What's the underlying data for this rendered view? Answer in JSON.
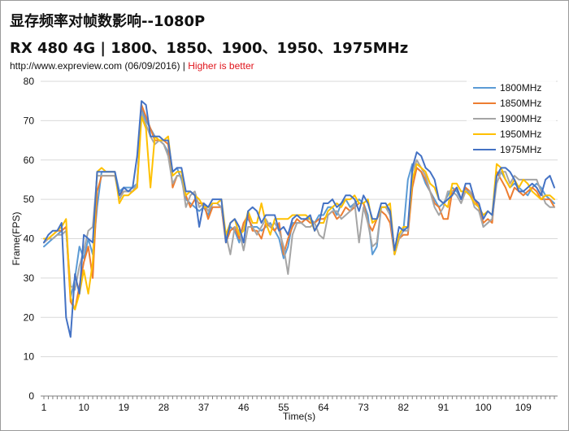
{
  "header": {
    "title": "显存频率对帧数影响--1080P",
    "subtitle": "RX 480 4G | 1800、1850、1900、1950、1975MHz",
    "source": "http://www.expreview.com (06/09/2016)",
    "separator": "|",
    "note": "Higher is better",
    "note_color": "#e0151c"
  },
  "chart_data": {
    "type": "line",
    "xlabel": "Time(s)",
    "ylabel": "Frame(FPS)",
    "ylim": [
      0,
      80
    ],
    "yticks": [
      0,
      10,
      20,
      30,
      40,
      50,
      60,
      70,
      80
    ],
    "xlim": [
      1,
      116
    ],
    "xticks": [
      1,
      10,
      19,
      28,
      37,
      46,
      55,
      64,
      73,
      82,
      91,
      100,
      109
    ],
    "grid": "horizontal",
    "legend_position": "top-right",
    "series": [
      {
        "name": "1800MHz",
        "color": "#5b9bd5",
        "values": [
          38,
          39,
          40,
          41,
          42,
          43,
          25,
          30,
          38,
          35,
          40,
          36,
          48,
          57,
          57,
          57,
          57,
          52,
          53,
          53,
          53,
          54,
          73,
          70,
          68,
          66,
          65,
          64,
          62,
          57,
          58,
          55,
          50,
          49,
          48,
          47,
          48,
          46,
          49,
          49,
          48,
          40,
          43,
          42,
          39,
          44,
          45,
          43,
          43,
          42,
          43,
          44,
          42,
          40,
          35,
          38,
          44,
          44,
          44,
          45,
          45,
          44,
          46,
          46,
          48,
          48,
          46,
          49,
          50,
          48,
          49,
          50,
          49,
          46,
          36,
          38,
          48,
          48,
          47,
          36,
          40,
          42,
          55,
          59,
          58,
          57,
          54,
          52,
          50,
          48,
          49,
          51,
          53,
          52,
          50,
          53,
          51,
          49,
          48,
          43,
          44,
          45,
          56,
          57,
          55,
          53,
          54,
          53,
          52,
          51,
          53,
          54,
          53,
          51,
          50,
          49
        ]
      },
      {
        "name": "1850MHz",
        "color": "#ed7d31",
        "values": [
          39,
          40,
          41,
          42,
          42,
          43,
          24,
          22,
          28,
          34,
          38,
          30,
          52,
          56,
          56,
          56,
          56,
          51,
          52,
          52,
          52,
          53,
          74,
          71,
          68,
          65,
          65,
          65,
          64,
          53,
          56,
          56,
          51,
          48,
          50,
          49,
          49,
          45,
          48,
          48,
          48,
          39,
          42,
          43,
          40,
          44,
          46,
          42,
          42,
          40,
          44,
          43,
          42,
          44,
          36,
          40,
          43,
          45,
          44,
          45,
          44,
          44,
          45,
          45,
          46,
          47,
          45,
          46,
          48,
          47,
          48,
          49,
          49,
          44,
          42,
          45,
          47,
          46,
          44,
          36,
          40,
          41,
          41,
          53,
          58,
          57,
          55,
          52,
          49,
          48,
          45,
          45,
          52,
          53,
          50,
          53,
          52,
          50,
          48,
          44,
          45,
          44,
          57,
          55,
          53,
          50,
          53,
          52,
          51,
          52,
          53,
          52,
          50,
          50,
          50,
          48
        ]
      },
      {
        "name": "1900MHz",
        "color": "#a5a5a5",
        "values": [
          39,
          40,
          40,
          41,
          41,
          42,
          28,
          27,
          33,
          37,
          42,
          43,
          56,
          56,
          56,
          56,
          56,
          50,
          52,
          52,
          52,
          54,
          72,
          69,
          66,
          64,
          65,
          64,
          61,
          54,
          56,
          56,
          48,
          51,
          52,
          48,
          49,
          47,
          49,
          49,
          48,
          41,
          36,
          43,
          42,
          37,
          43,
          43,
          41,
          43,
          45,
          43,
          44,
          42,
          38,
          31,
          41,
          44,
          44,
          43,
          43,
          44,
          41,
          40,
          46,
          47,
          47,
          45,
          46,
          47,
          49,
          39,
          48,
          44,
          38,
          39,
          48,
          48,
          46,
          36,
          40,
          42,
          42,
          57,
          60,
          58,
          56,
          52,
          48,
          46,
          48,
          52,
          52,
          51,
          49,
          52,
          52,
          48,
          47,
          43,
          44,
          45,
          54,
          57,
          57,
          54,
          56,
          55,
          55,
          55,
          55,
          55,
          52,
          49,
          48,
          48
        ]
      },
      {
        "name": "1950MHz",
        "color": "#ffc000",
        "values": [
          40,
          40,
          41,
          42,
          43,
          45,
          25,
          22,
          26,
          32,
          26,
          34,
          57,
          58,
          57,
          57,
          57,
          49,
          51,
          51,
          52,
          53,
          71,
          68,
          53,
          66,
          65,
          65,
          66,
          56,
          57,
          57,
          51,
          52,
          51,
          50,
          48,
          48,
          49,
          49,
          50,
          41,
          44,
          45,
          41,
          42,
          47,
          44,
          44,
          49,
          44,
          41,
          45,
          45,
          45,
          45,
          46,
          46,
          46,
          46,
          45,
          42,
          44,
          44,
          47,
          48,
          49,
          48,
          50,
          50,
          51,
          49,
          49,
          50,
          44,
          45,
          48,
          48,
          49,
          36,
          41,
          43,
          43,
          55,
          59,
          58,
          57,
          54,
          53,
          50,
          49,
          48,
          54,
          54,
          52,
          52,
          51,
          49,
          48,
          46,
          47,
          46,
          59,
          58,
          55,
          53,
          55,
          53,
          55,
          54,
          52,
          51,
          50,
          51,
          51,
          50
        ]
      },
      {
        "name": "1975MHz",
        "color": "#4472c4",
        "values": [
          39,
          41,
          42,
          42,
          44,
          20,
          15,
          31,
          26,
          41,
          40,
          39,
          57,
          57,
          57,
          57,
          57,
          51,
          53,
          52,
          53,
          61,
          75,
          74,
          66,
          66,
          66,
          65,
          65,
          57,
          58,
          58,
          52,
          52,
          51,
          43,
          49,
          48,
          50,
          50,
          50,
          39,
          44,
          45,
          43,
          39,
          47,
          48,
          47,
          44,
          46,
          46,
          46,
          42,
          43,
          41,
          45,
          46,
          45,
          45,
          46,
          42,
          44,
          49,
          49,
          50,
          48,
          49,
          51,
          51,
          50,
          47,
          51,
          49,
          45,
          45,
          49,
          49,
          47,
          37,
          43,
          42,
          43,
          58,
          62,
          61,
          58,
          57,
          55,
          50,
          49,
          50,
          51,
          53,
          50,
          54,
          54,
          50,
          49,
          45,
          47,
          46,
          56,
          58,
          58,
          57,
          55,
          52,
          52,
          53,
          54,
          53,
          51,
          55,
          56,
          53
        ]
      }
    ]
  }
}
